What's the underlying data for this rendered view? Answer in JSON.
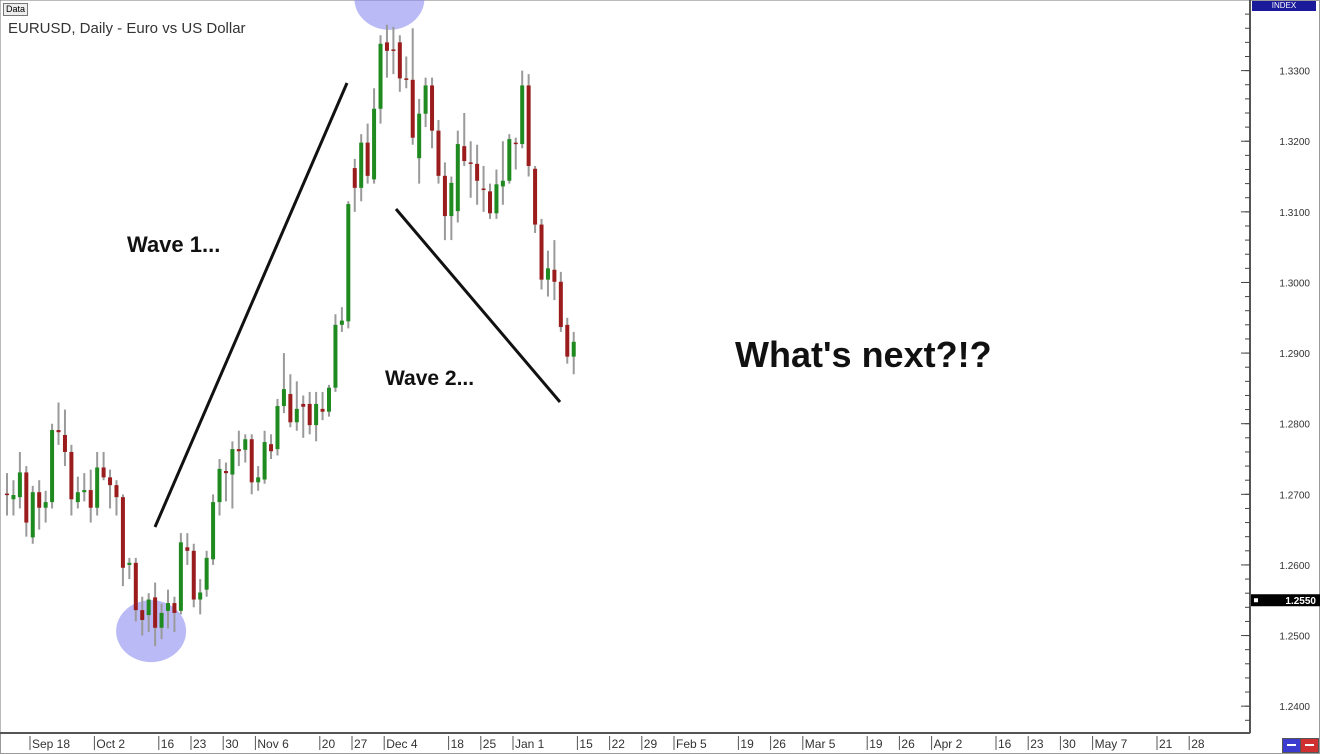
{
  "header": {
    "data_label": "Data",
    "title": "EURUSD, Daily - Euro vs US Dollar",
    "index_label": "INDEX"
  },
  "annotations": {
    "wave1": "Wave 1...",
    "wave2": "Wave 2...",
    "next": "What's next?!?"
  },
  "colors": {
    "up": "#1f8a1f",
    "down": "#9b1c1c",
    "wick": "#9a9a9a",
    "highlight": "#8c8cf0",
    "price_marker": "#000000"
  },
  "controls": {
    "zoom_out_icon": "minus-icon",
    "zoom_in_icon": "plus-icon"
  },
  "chart_data": {
    "type": "candlestick",
    "title": "EURUSD, Daily - Euro vs US Dollar",
    "ylim": [
      1.2362,
      1.34
    ],
    "yticks": [
      "1.3300",
      "1.3200",
      "1.3100",
      "1.3000",
      "1.2900",
      "1.2800",
      "1.2700",
      "1.2600",
      "1.2500",
      "1.2400"
    ],
    "current_price": "1.2550",
    "xticks": [
      "Sep 18",
      "Oct 2",
      "16",
      "23",
      "30",
      "Nov 6",
      "20",
      "27",
      "Dec 4",
      "18",
      "25",
      "Jan 1",
      "15",
      "22",
      "29",
      "Feb 5",
      "19",
      "26",
      "Mar 5",
      "19",
      "26",
      "Apr 2",
      "16",
      "23",
      "30",
      "May 7",
      "21",
      "28"
    ],
    "candle_fields": [
      "date",
      "open",
      "high",
      "low",
      "close"
    ],
    "candles": [
      [
        "Sep 12",
        1.2701,
        1.273,
        1.267,
        1.2699
      ],
      [
        "Sep 13",
        1.2693,
        1.272,
        1.267,
        1.2699
      ],
      [
        "Sep 14",
        1.2696,
        1.276,
        1.268,
        1.2731
      ],
      [
        "Sep 15",
        1.2731,
        1.274,
        1.264,
        1.266
      ],
      [
        "Sep 18",
        1.2639,
        1.2712,
        1.263,
        1.2703
      ],
      [
        "Sep 19",
        1.2703,
        1.272,
        1.265,
        1.2681
      ],
      [
        "Sep 20",
        1.2681,
        1.2705,
        1.266,
        1.2689
      ],
      [
        "Sep 21",
        1.2689,
        1.28,
        1.268,
        1.2791
      ],
      [
        "Sep 22",
        1.2791,
        1.283,
        1.277,
        1.2788
      ],
      [
        "Sep 25",
        1.2784,
        1.282,
        1.274,
        1.276
      ],
      [
        "Sep 26",
        1.276,
        1.277,
        1.267,
        1.2693
      ],
      [
        "Sep 27",
        1.2689,
        1.2725,
        1.268,
        1.2703
      ],
      [
        "Sep 28",
        1.2703,
        1.273,
        1.269,
        1.2706
      ],
      [
        "Sep 29",
        1.2706,
        1.2735,
        1.266,
        1.2681
      ],
      [
        "Oct 2",
        1.2681,
        1.276,
        1.267,
        1.2738
      ],
      [
        "Oct 3",
        1.2738,
        1.276,
        1.272,
        1.2724
      ],
      [
        "Oct 4",
        1.2724,
        1.2735,
        1.268,
        1.2713
      ],
      [
        "Oct 5",
        1.2713,
        1.272,
        1.267,
        1.2696
      ],
      [
        "Oct 6",
        1.2696,
        1.27,
        1.257,
        1.2596
      ],
      [
        "Oct 9",
        1.26,
        1.261,
        1.258,
        1.2603
      ],
      [
        "Oct 10",
        1.2603,
        1.261,
        1.252,
        1.2536
      ],
      [
        "Oct 11",
        1.2536,
        1.2555,
        1.25,
        1.2522
      ],
      [
        "Oct 12",
        1.2529,
        1.256,
        1.2505,
        1.2551
      ],
      [
        "Oct 13",
        1.2554,
        1.2575,
        1.2485,
        1.2511
      ],
      [
        "Oct 16",
        1.2511,
        1.2545,
        1.2495,
        1.2532
      ],
      [
        "Oct 17",
        1.2535,
        1.2565,
        1.251,
        1.2546
      ],
      [
        "Oct 18",
        1.2546,
        1.2555,
        1.2505,
        1.2532
      ],
      [
        "Oct 19",
        1.2535,
        1.2645,
        1.253,
        1.2632
      ],
      [
        "Oct 20",
        1.2625,
        1.2645,
        1.26,
        1.262
      ],
      [
        "Oct 23",
        1.262,
        1.263,
        1.254,
        1.2551
      ],
      [
        "Oct 24",
        1.2551,
        1.258,
        1.253,
        1.2561
      ],
      [
        "Oct 25",
        1.2565,
        1.262,
        1.2555,
        1.261
      ],
      [
        "Oct 26",
        1.2608,
        1.27,
        1.26,
        1.2689
      ],
      [
        "Oct 27",
        1.2689,
        1.275,
        1.267,
        1.2736
      ],
      [
        "Oct 30",
        1.2733,
        1.2745,
        1.269,
        1.273
      ],
      [
        "Oct 31",
        1.2728,
        1.2775,
        1.268,
        1.2764
      ],
      [
        "Nov 1",
        1.2764,
        1.279,
        1.274,
        1.2761
      ],
      [
        "Nov 2",
        1.2763,
        1.2785,
        1.2745,
        1.2778
      ],
      [
        "Nov 3",
        1.2778,
        1.2785,
        1.27,
        1.2717
      ],
      [
        "Nov 6",
        1.2717,
        1.274,
        1.2705,
        1.2724
      ],
      [
        "Nov 7",
        1.2721,
        1.279,
        1.2715,
        1.2774
      ],
      [
        "Nov 8",
        1.2771,
        1.2785,
        1.275,
        1.2761
      ],
      [
        "Nov 9",
        1.2764,
        1.2835,
        1.2755,
        1.2825
      ],
      [
        "Nov 10",
        1.2825,
        1.29,
        1.2815,
        1.2849
      ],
      [
        "Nov 13",
        1.2842,
        1.287,
        1.2795,
        1.2802
      ],
      [
        "Nov 14",
        1.2802,
        1.286,
        1.279,
        1.2821
      ],
      [
        "Nov 15",
        1.2828,
        1.284,
        1.278,
        1.2824
      ],
      [
        "Nov 16",
        1.2828,
        1.2845,
        1.2785,
        1.2798
      ],
      [
        "Nov 17",
        1.2798,
        1.2845,
        1.2775,
        1.2828
      ],
      [
        "Nov 20",
        1.2821,
        1.2845,
        1.2805,
        1.2817
      ],
      [
        "Nov 21",
        1.2817,
        1.2855,
        1.281,
        1.2851
      ],
      [
        "Nov 22",
        1.2851,
        1.2955,
        1.2845,
        1.294
      ],
      [
        "Nov 23",
        1.294,
        1.2965,
        1.293,
        1.2946
      ],
      [
        "Nov 24",
        1.2945,
        1.3115,
        1.2935,
        1.3111
      ],
      [
        "Nov 27",
        1.3162,
        1.3175,
        1.31,
        1.3134
      ],
      [
        "Nov 28",
        1.3134,
        1.321,
        1.3115,
        1.3198
      ],
      [
        "Nov 29",
        1.3198,
        1.3225,
        1.314,
        1.3151
      ],
      [
        "Nov 30",
        1.3146,
        1.3275,
        1.314,
        1.3246
      ],
      [
        "Dec 1",
        1.3246,
        1.335,
        1.3225,
        1.3338
      ],
      [
        "Dec 4",
        1.334,
        1.3365,
        1.329,
        1.3328
      ],
      [
        "Dec 5",
        1.333,
        1.3362,
        1.3295,
        1.3328
      ],
      [
        "Dec 6",
        1.334,
        1.335,
        1.327,
        1.3289
      ],
      [
        "Dec 7",
        1.3289,
        1.332,
        1.3275,
        1.3287
      ],
      [
        "Dec 8",
        1.3287,
        1.336,
        1.3195,
        1.3205
      ],
      [
        "Dec 11",
        1.3176,
        1.326,
        1.314,
        1.3239
      ],
      [
        "Dec 12",
        1.3239,
        1.329,
        1.322,
        1.3279
      ],
      [
        "Dec 13",
        1.3279,
        1.329,
        1.319,
        1.3215
      ],
      [
        "Dec 14",
        1.3215,
        1.323,
        1.314,
        1.3151
      ],
      [
        "Dec 15",
        1.3151,
        1.317,
        1.306,
        1.3094
      ],
      [
        "Dec 18",
        1.3094,
        1.315,
        1.306,
        1.3141
      ],
      [
        "Dec 19",
        1.3101,
        1.3215,
        1.3085,
        1.3196
      ],
      [
        "Dec 20",
        1.3193,
        1.324,
        1.3165,
        1.3172
      ],
      [
        "Dec 21",
        1.317,
        1.32,
        1.312,
        1.3169
      ],
      [
        "Dec 22",
        1.3168,
        1.3195,
        1.311,
        1.3144
      ],
      [
        "Dec 25",
        1.3133,
        1.3165,
        1.31,
        1.3132
      ],
      [
        "Dec 26",
        1.3129,
        1.314,
        1.309,
        1.3098
      ],
      [
        "Dec 27",
        1.3098,
        1.316,
        1.309,
        1.3139
      ],
      [
        "Dec 28",
        1.3136,
        1.32,
        1.311,
        1.3144
      ],
      [
        "Dec 29",
        1.3144,
        1.321,
        1.314,
        1.3203
      ],
      [
        "Jan 1",
        1.3198,
        1.3205,
        1.316,
        1.3196
      ],
      [
        "Jan 2",
        1.3196,
        1.33,
        1.319,
        1.3279
      ],
      [
        "Jan 3",
        1.3279,
        1.3295,
        1.315,
        1.3165
      ],
      [
        "Jan 4",
        1.3161,
        1.3165,
        1.307,
        1.3082
      ],
      [
        "Jan 5",
        1.3082,
        1.309,
        1.299,
        1.3004
      ],
      [
        "Jan 8",
        1.3004,
        1.3045,
        1.298,
        1.302
      ],
      [
        "Jan 9",
        1.3018,
        1.306,
        1.2975,
        1.3001
      ],
      [
        "Jan 10",
        1.3001,
        1.3015,
        1.293,
        1.2937
      ],
      [
        "Jan 11",
        1.294,
        1.295,
        1.2885,
        1.2895
      ],
      [
        "Jan 12",
        1.2895,
        1.293,
        1.287,
        1.2916
      ]
    ],
    "highlights": [
      "Oct 13",
      "Dec 5"
    ],
    "grid": false
  }
}
